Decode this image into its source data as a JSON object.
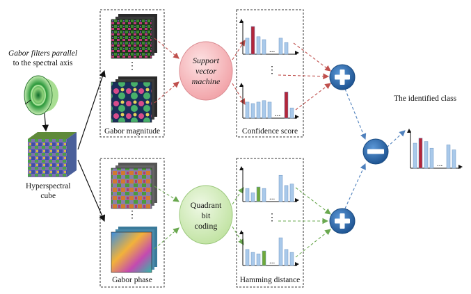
{
  "labels": {
    "gabor_filters_line1": "Gabor filters parallel",
    "gabor_filters_line2": "to the spectral axis",
    "hyperspectral_line1": "Hyperspectral",
    "hyperspectral_line2": "cube",
    "gabor_magnitude": "Gabor magnitude",
    "gabor_phase": "Gabor phase",
    "svm_line1": "Support",
    "svm_line2": "vector",
    "svm_line3": "machine",
    "qbc_line1": "Quadrant",
    "qbc_line2": "bit",
    "qbc_line3": "coding",
    "confidence_score": "Confidence score",
    "hamming_distance": "Hamming distance",
    "identified_class": "The identified class",
    "ellipsis": "...",
    "vdots": "⋮"
  },
  "operators": {
    "add_symbol": "+",
    "subtract_symbol": "−"
  },
  "colors": {
    "bar_blue": "#a9c9ea",
    "bar_red": "#b3263a",
    "bar_green": "#6fa83a",
    "svm_fill": "#f5b5b8",
    "qbc_fill": "#cfeab5",
    "operator_fill": "#2f6fae",
    "red_arrow": "#c0504d",
    "green_arrow": "#6aa84f",
    "blue_arrow": "#4f81bd"
  },
  "histograms": {
    "conf_top": [
      {
        "v": 0.55,
        "c": "blue"
      },
      {
        "v": 0.95,
        "c": "red"
      },
      {
        "v": 0.6,
        "c": "blue"
      },
      {
        "v": 0.5,
        "c": "blue"
      },
      {
        "v": 0.55,
        "c": "blue"
      },
      {
        "v": 0.4,
        "c": "blue"
      }
    ],
    "conf_bottom": [
      {
        "v": 0.55,
        "c": "blue"
      },
      {
        "v": 0.5,
        "c": "blue"
      },
      {
        "v": 0.55,
        "c": "blue"
      },
      {
        "v": 0.6,
        "c": "blue"
      },
      {
        "v": 0.55,
        "c": "blue"
      },
      {
        "v": 0.9,
        "c": "red"
      },
      {
        "v": 0.35,
        "c": "blue"
      }
    ],
    "ham_top": [
      {
        "v": 0.45,
        "c": "blue"
      },
      {
        "v": 0.3,
        "c": "blue"
      },
      {
        "v": 0.5,
        "c": "green"
      },
      {
        "v": 0.45,
        "c": "blue"
      },
      {
        "v": 0.9,
        "c": "blue"
      },
      {
        "v": 0.55,
        "c": "blue"
      },
      {
        "v": 0.6,
        "c": "blue"
      }
    ],
    "ham_bottom": [
      {
        "v": 0.55,
        "c": "blue"
      },
      {
        "v": 0.45,
        "c": "blue"
      },
      {
        "v": 0.4,
        "c": "blue"
      },
      {
        "v": 0.5,
        "c": "green"
      },
      {
        "v": 0.95,
        "c": "blue"
      },
      {
        "v": 0.55,
        "c": "blue"
      },
      {
        "v": 0.45,
        "c": "blue"
      }
    ],
    "result": [
      {
        "v": 0.75,
        "c": "blue"
      },
      {
        "v": 0.9,
        "c": "red"
      },
      {
        "v": 0.8,
        "c": "blue"
      },
      {
        "v": 0.6,
        "c": "blue"
      },
      {
        "v": 0.7,
        "c": "blue"
      },
      {
        "v": 0.55,
        "c": "blue"
      }
    ]
  }
}
